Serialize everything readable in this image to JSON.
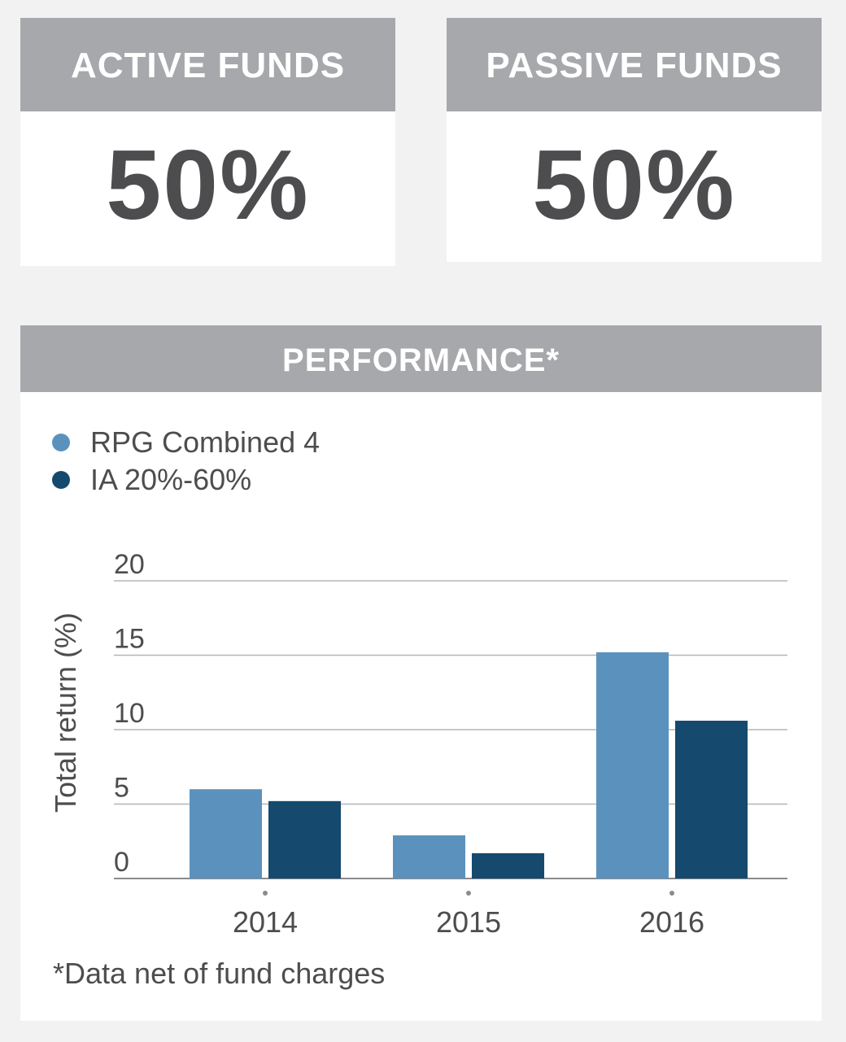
{
  "active": {
    "title": "ACTIVE FUNDS",
    "value": "50%"
  },
  "passive": {
    "title": "PASSIVE FUNDS",
    "value": "50%"
  },
  "performance": {
    "title": "PERFORMANCE*",
    "footnote": "*Data net of fund charges"
  },
  "colors": {
    "header_bg": "#a7a8ab",
    "series_light": "#5b92bd",
    "series_dark": "#154a6e",
    "text": "#4d4d4f"
  },
  "chart_data": {
    "type": "bar",
    "categories": [
      "2014",
      "2015",
      "2016"
    ],
    "series": [
      {
        "name": "RPG Combined 4",
        "values": [
          6.0,
          2.9,
          15.2
        ],
        "color": "#5b92bd"
      },
      {
        "name": "IA 20%-60%",
        "values": [
          5.2,
          1.7,
          10.6
        ],
        "color": "#154a6e"
      }
    ],
    "ylabel": "Total return (%)",
    "ylim": [
      0,
      20
    ],
    "yticks": [
      0,
      5,
      10,
      15,
      20
    ],
    "grid": true,
    "legend": "top-left"
  }
}
